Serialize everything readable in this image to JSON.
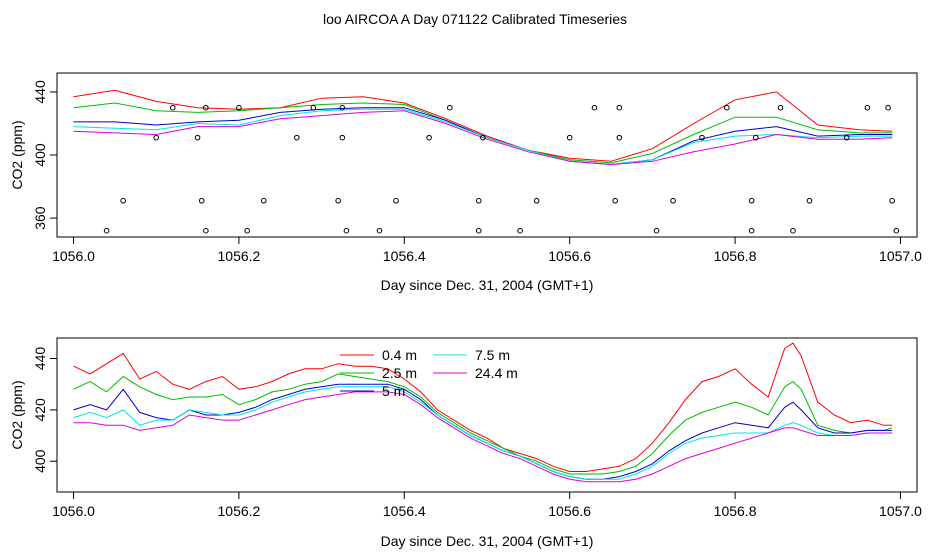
{
  "title": "loo AIRCOA A  Day 071122  Calibrated Timeseries",
  "colors": {
    "0.4 m": "#ff0000",
    "2.5 m": "#00bb00",
    "5 m": "#0000cc",
    "7.5 m": "#00e5e5",
    "24.4 m": "#dd00dd",
    "axis": "#000000"
  },
  "chart_data": [
    {
      "type": "line",
      "xlabel": "Day since Dec. 31, 2004 (GMT+1)",
      "ylabel": "CO2 (ppm)",
      "xlim": [
        1055.98,
        1057.02
      ],
      "ylim": [
        348,
        452
      ],
      "xticks": [
        "1056.0",
        "1056.2",
        "1056.4",
        "1056.6",
        "1056.8",
        "1057.0"
      ],
      "yticks": [
        "360",
        "400",
        "440"
      ],
      "xtick_values": [
        1056.0,
        1056.2,
        1056.4,
        1056.6,
        1056.8,
        1057.0
      ],
      "ytick_values": [
        360,
        400,
        440
      ],
      "x": [
        1056.0,
        1056.05,
        1056.1,
        1056.15,
        1056.2,
        1056.25,
        1056.3,
        1056.35,
        1056.4,
        1056.45,
        1056.5,
        1056.55,
        1056.6,
        1056.65,
        1056.7,
        1056.75,
        1056.8,
        1056.85,
        1056.9,
        1056.95,
        1056.99
      ],
      "series": [
        {
          "name": "0.4 m",
          "values": [
            437,
            441,
            434,
            430,
            429,
            430,
            436,
            437,
            433,
            423,
            412,
            403,
            398,
            396,
            404,
            420,
            435,
            440,
            419,
            416,
            415
          ]
        },
        {
          "name": "2.5 m",
          "values": [
            430,
            433,
            428,
            427,
            428,
            430,
            432,
            433,
            432,
            422,
            411,
            403,
            397,
            395,
            401,
            413,
            424,
            424,
            416,
            414,
            414
          ]
        },
        {
          "name": "5 m",
          "values": [
            421,
            421,
            419,
            421,
            422,
            427,
            429,
            430,
            430,
            422,
            411,
            403,
            396,
            394,
            397,
            409,
            415,
            418,
            412,
            413,
            413
          ]
        },
        {
          "name": "7.5 m",
          "values": [
            418,
            417,
            416,
            420,
            419,
            425,
            428,
            429,
            429,
            421,
            411,
            403,
            396,
            394,
            397,
            408,
            412,
            413,
            411,
            412,
            412
          ]
        },
        {
          "name": "24.4 m",
          "values": [
            415,
            414,
            413,
            418,
            418,
            423,
            425,
            427,
            428,
            420,
            410,
            402,
            396,
            394,
            396,
            402,
            407,
            413,
            410,
            410,
            411
          ]
        }
      ],
      "scatter": {
        "x": [
          1056.04,
          1056.06,
          1056.1,
          1056.12,
          1056.15,
          1056.155,
          1056.16,
          1056.16,
          1056.2,
          1056.21,
          1056.23,
          1056.27,
          1056.29,
          1056.32,
          1056.325,
          1056.325,
          1056.33,
          1056.37,
          1056.39,
          1056.43,
          1056.455,
          1056.49,
          1056.49,
          1056.495,
          1056.54,
          1056.56,
          1056.6,
          1056.63,
          1056.655,
          1056.66,
          1056.66,
          1056.705,
          1056.725,
          1056.76,
          1056.79,
          1056.82,
          1056.82,
          1056.825,
          1056.855,
          1056.87,
          1056.89,
          1056.935,
          1056.96,
          1056.985,
          1056.99,
          1056.995
        ],
        "y": [
          352,
          371,
          411,
          430,
          411,
          371,
          352,
          430,
          430,
          352,
          371,
          411,
          430,
          371,
          411,
          430,
          352,
          352,
          371,
          411,
          430,
          352,
          371,
          411,
          352,
          371,
          411,
          430,
          371,
          411,
          430,
          352,
          371,
          411,
          430,
          352,
          371,
          411,
          430,
          352,
          371,
          411,
          430,
          430,
          371,
          352
        ]
      }
    },
    {
      "type": "line",
      "xlabel": "Day since Dec. 31, 2004 (GMT+1)",
      "ylabel": "CO2 (ppm)",
      "xlim": [
        1055.98,
        1057.02
      ],
      "ylim": [
        388,
        448
      ],
      "xticks": [
        "1056.0",
        "1056.2",
        "1056.4",
        "1056.6",
        "1056.8",
        "1057.0"
      ],
      "yticks": [
        "400",
        "420",
        "440"
      ],
      "xtick_values": [
        1056.0,
        1056.2,
        1056.4,
        1056.6,
        1056.8,
        1057.0
      ],
      "ytick_values": [
        400,
        420,
        440
      ],
      "legend_position": "top-center",
      "x": [
        1056.0,
        1056.02,
        1056.04,
        1056.06,
        1056.08,
        1056.1,
        1056.12,
        1056.14,
        1056.16,
        1056.18,
        1056.2,
        1056.22,
        1056.24,
        1056.26,
        1056.28,
        1056.3,
        1056.32,
        1056.34,
        1056.36,
        1056.38,
        1056.4,
        1056.42,
        1056.44,
        1056.46,
        1056.48,
        1056.5,
        1056.52,
        1056.54,
        1056.56,
        1056.58,
        1056.6,
        1056.62,
        1056.64,
        1056.66,
        1056.68,
        1056.7,
        1056.72,
        1056.74,
        1056.76,
        1056.78,
        1056.8,
        1056.82,
        1056.84,
        1056.86,
        1056.87,
        1056.88,
        1056.9,
        1056.92,
        1056.94,
        1056.96,
        1056.98,
        1056.99
      ],
      "series": [
        {
          "name": "0.4 m",
          "values": [
            437,
            434,
            438,
            442,
            432,
            435,
            430,
            428,
            431,
            433,
            428,
            429,
            431,
            434,
            436,
            436,
            438,
            437,
            437,
            436,
            432,
            427,
            420,
            416,
            412,
            409,
            405,
            403,
            401,
            398,
            396,
            396,
            397,
            398,
            401,
            407,
            415,
            424,
            431,
            433,
            436,
            430,
            425,
            444,
            446,
            441,
            423,
            418,
            415,
            416,
            414,
            414
          ]
        },
        {
          "name": "2.5 m",
          "values": [
            428,
            431,
            427,
            433,
            429,
            426,
            424,
            425,
            425,
            426,
            422,
            424,
            427,
            428,
            430,
            431,
            434,
            433,
            432,
            431,
            429,
            425,
            419,
            415,
            411,
            408,
            405,
            402,
            400,
            397,
            395,
            395,
            395,
            396,
            398,
            403,
            410,
            416,
            419,
            421,
            423,
            421,
            418,
            429,
            431,
            428,
            414,
            412,
            411,
            412,
            412,
            413
          ]
        },
        {
          "name": "5 m",
          "values": [
            420,
            422,
            420,
            428,
            419,
            417,
            416,
            420,
            418,
            418,
            419,
            421,
            424,
            426,
            428,
            429,
            430,
            430,
            430,
            430,
            428,
            424,
            418,
            414,
            410,
            407,
            404,
            402,
            399,
            396,
            394,
            393,
            393,
            394,
            396,
            399,
            404,
            408,
            411,
            413,
            415,
            414,
            413,
            421,
            423,
            420,
            413,
            411,
            411,
            412,
            412,
            412
          ]
        },
        {
          "name": "7.5 m",
          "values": [
            417,
            419,
            417,
            420,
            414,
            416,
            416,
            420,
            419,
            418,
            418,
            420,
            423,
            425,
            427,
            428,
            429,
            429,
            429,
            429,
            427,
            423,
            418,
            414,
            410,
            407,
            404,
            402,
            399,
            396,
            394,
            393,
            393,
            393,
            395,
            398,
            403,
            407,
            409,
            410,
            411,
            411,
            411,
            414,
            415,
            414,
            411,
            410,
            410,
            411,
            411,
            411
          ]
        },
        {
          "name": "24.4 m",
          "values": [
            415,
            415,
            414,
            414,
            412,
            413,
            414,
            418,
            417,
            416,
            416,
            418,
            420,
            422,
            424,
            425,
            426,
            427,
            427,
            427,
            426,
            422,
            417,
            413,
            409,
            406,
            403,
            401,
            398,
            395,
            393,
            392,
            392,
            392,
            393,
            395,
            398,
            401,
            403,
            405,
            407,
            409,
            411,
            413,
            413,
            412,
            410,
            410,
            410,
            411,
            411,
            411
          ]
        }
      ],
      "legend": [
        {
          "name": "0.4 m",
          "label": "0.4 m"
        },
        {
          "name": "2.5 m",
          "label": "2.5 m"
        },
        {
          "name": "5 m",
          "label": "5 m"
        },
        {
          "name": "7.5 m",
          "label": "7.5 m"
        },
        {
          "name": "24.4 m",
          "label": "24.4 m"
        }
      ]
    }
  ]
}
